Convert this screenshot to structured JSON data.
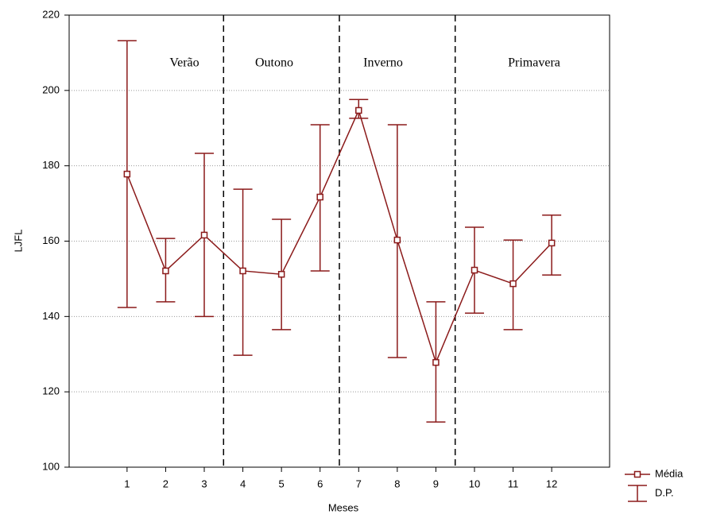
{
  "chart_data": {
    "type": "line",
    "x_label": "Meses",
    "y_label": "LJFL",
    "x": [
      1,
      2,
      3,
      4,
      5,
      6,
      7,
      8,
      9,
      10,
      11,
      12
    ],
    "xlim": [
      -0.5,
      13.5
    ],
    "xticks": [
      1,
      2,
      3,
      4,
      5,
      6,
      7,
      8,
      9,
      10,
      11,
      12
    ],
    "ylim": [
      100,
      220
    ],
    "yticks": [
      100,
      120,
      140,
      160,
      180,
      200,
      220
    ],
    "grid": true,
    "legend": "bottom-right",
    "series": [
      {
        "name": "Média",
        "color": "#8b1a1a",
        "values": [
          177.8,
          152.1,
          161.6,
          152.1,
          151.2,
          171.7,
          194.7,
          160.3,
          127.8,
          152.3,
          148.7,
          159.5
        ]
      }
    ],
    "error_bars": {
      "name": "D.P.",
      "color": "#8b1a1a",
      "upper": [
        213.2,
        160.7,
        183.3,
        173.8,
        165.8,
        190.9,
        197.6,
        190.9,
        143.9,
        163.7,
        160.3,
        166.9
      ],
      "lower": [
        142.4,
        143.9,
        140.0,
        129.7,
        136.5,
        152.1,
        192.6,
        129.1,
        112.0,
        140.9,
        136.5,
        151.0
      ]
    },
    "dividers": [
      3.5,
      6.5,
      9.5
    ],
    "annotations": [
      "Verão",
      "Outono",
      "Inverno",
      "Primavera"
    ]
  }
}
